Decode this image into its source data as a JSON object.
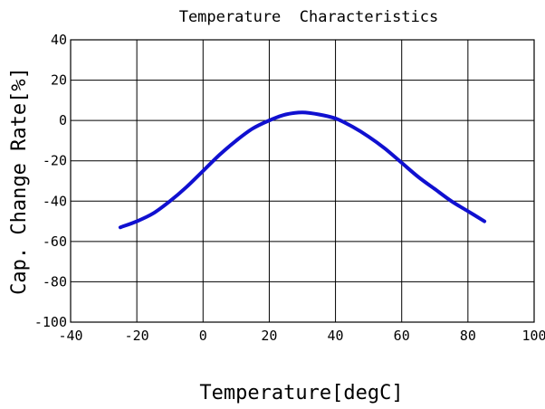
{
  "chart_data": {
    "type": "line",
    "title": "Temperature  Characteristics",
    "xlabel": "Temperature[degC]",
    "ylabel": "Cap. Change Rate[%]",
    "xlim": [
      -40,
      100
    ],
    "ylim": [
      -100,
      40
    ],
    "xticks": [
      "-40",
      "-20",
      "0",
      "20",
      "40",
      "60",
      "80",
      "100"
    ],
    "yticks": [
      "40",
      "20",
      "0",
      "-20",
      "-40",
      "-60",
      "-80",
      "-100"
    ],
    "grid": true,
    "legend": "none",
    "color": "#1010d0",
    "series": [
      {
        "x": [
          -25,
          -20,
          -15,
          -10,
          -5,
          0,
          5,
          10,
          15,
          20,
          25,
          30,
          35,
          40,
          45,
          50,
          55,
          60,
          65,
          70,
          75,
          80,
          85
        ],
        "values": [
          -53,
          -50,
          -46,
          -40,
          -33,
          -25,
          -17,
          -10,
          -4,
          0,
          3,
          4,
          3,
          1,
          -3,
          -8,
          -14,
          -21,
          -28,
          -34,
          -40,
          -45,
          -50
        ]
      }
    ]
  }
}
